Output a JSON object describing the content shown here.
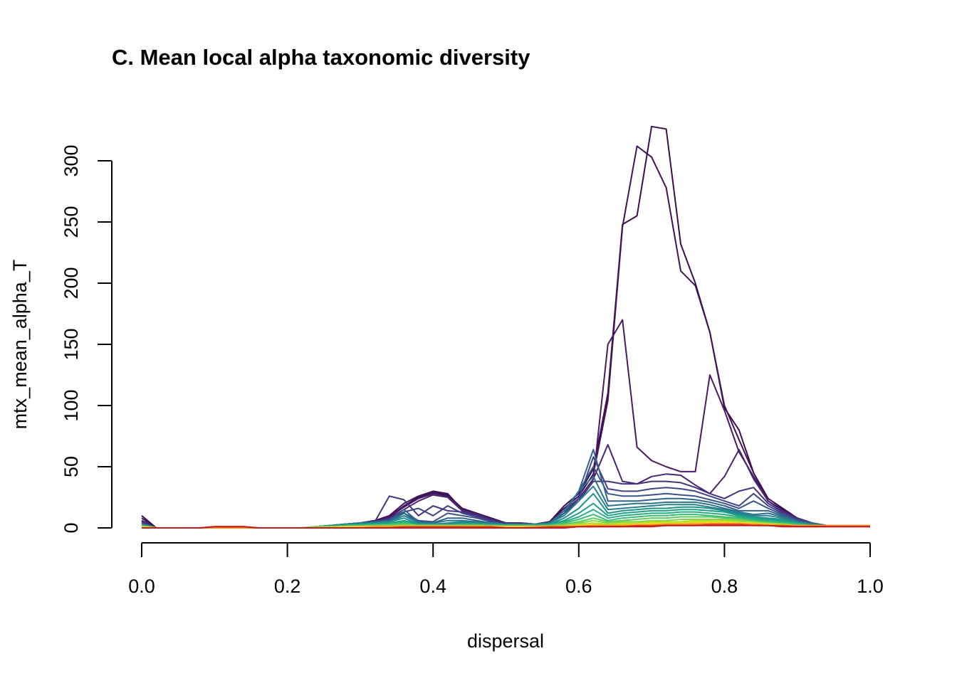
{
  "chart_data": {
    "type": "line",
    "title": "C. Mean local alpha taxonomic diversity",
    "xlabel": "dispersal",
    "ylabel": "mtx_mean_alpha_T",
    "xlim": [
      0,
      1
    ],
    "ylim": [
      0,
      300
    ],
    "xticks": [
      "0.0",
      "0.2",
      "0.4",
      "0.6",
      "0.8",
      "1.0"
    ],
    "yticks": [
      "0",
      "50",
      "100",
      "150",
      "200",
      "250",
      "300"
    ],
    "grid": false,
    "legend": "none",
    "x": [
      0.0,
      0.02,
      0.04,
      0.06,
      0.08,
      0.1,
      0.12,
      0.14,
      0.16,
      0.18,
      0.2,
      0.22,
      0.24,
      0.26,
      0.28,
      0.3,
      0.32,
      0.34,
      0.36,
      0.38,
      0.4,
      0.42,
      0.44,
      0.46,
      0.48,
      0.5,
      0.52,
      0.54,
      0.56,
      0.58,
      0.6,
      0.62,
      0.64,
      0.66,
      0.68,
      0.7,
      0.72,
      0.74,
      0.76,
      0.78,
      0.8,
      0.82,
      0.84,
      0.86,
      0.88,
      0.9,
      0.92,
      0.94,
      0.96,
      0.98,
      1.0
    ],
    "series": [
      {
        "color": "#3b0f4f",
        "values": [
          10,
          0,
          0,
          0,
          0,
          0,
          0,
          0,
          0,
          0,
          0,
          0,
          1,
          2,
          3,
          4,
          6,
          9,
          18,
          25,
          29,
          27,
          16,
          12,
          8,
          4,
          4,
          3,
          5,
          18,
          28,
          48,
          110,
          248,
          255,
          328,
          326,
          232,
          200,
          160,
          98,
          80,
          45,
          24,
          16,
          8,
          4,
          2,
          2,
          2,
          2
        ]
      },
      {
        "color": "#431259",
        "values": [
          8,
          0,
          0,
          0,
          0,
          0,
          0,
          0,
          0,
          0,
          0,
          0,
          1,
          2,
          3,
          4,
          6,
          10,
          20,
          26,
          30,
          28,
          15,
          12,
          7,
          4,
          4,
          3,
          5,
          16,
          26,
          44,
          104,
          246,
          312,
          303,
          278,
          210,
          198,
          160,
          100,
          72,
          45,
          22,
          15,
          8,
          4,
          2,
          2,
          2,
          2
        ]
      },
      {
        "color": "#471a63",
        "values": [
          6,
          0,
          0,
          0,
          0,
          0,
          0,
          0,
          0,
          0,
          0,
          0,
          1,
          2,
          3,
          4,
          6,
          9,
          17,
          24,
          28,
          26,
          15,
          11,
          7,
          4,
          4,
          3,
          5,
          14,
          24,
          40,
          150,
          170,
          66,
          55,
          50,
          46,
          46,
          125,
          96,
          62,
          42,
          22,
          14,
          8,
          4,
          2,
          2,
          2,
          2
        ]
      },
      {
        "color": "#482575",
        "values": [
          5,
          0,
          0,
          0,
          0,
          0,
          0,
          0,
          0,
          0,
          0,
          0,
          1,
          2,
          3,
          4,
          5,
          8,
          15,
          22,
          27,
          25,
          14,
          11,
          7,
          4,
          4,
          3,
          4,
          12,
          24,
          40,
          68,
          38,
          36,
          42,
          44,
          43,
          35,
          28,
          42,
          64,
          40,
          22,
          14,
          8,
          4,
          2,
          2,
          2,
          2
        ]
      },
      {
        "color": "#46337e",
        "values": [
          5,
          0,
          0,
          0,
          0,
          0,
          0,
          0,
          0,
          0,
          0,
          0,
          1,
          2,
          3,
          4,
          5,
          26,
          23,
          10,
          18,
          14,
          13,
          10,
          6,
          3,
          3,
          3,
          4,
          12,
          22,
          38,
          38,
          36,
          36,
          38,
          38,
          37,
          33,
          28,
          24,
          30,
          33,
          20,
          13,
          7,
          4,
          2,
          2,
          2,
          2
        ]
      },
      {
        "color": "#414487",
        "values": [
          4,
          0,
          0,
          0,
          0,
          0,
          0,
          0,
          0,
          0,
          0,
          0,
          1,
          2,
          3,
          4,
          5,
          7,
          13,
          16,
          10,
          18,
          12,
          9,
          5,
          3,
          3,
          3,
          4,
          12,
          24,
          58,
          32,
          30,
          30,
          32,
          33,
          32,
          30,
          26,
          22,
          18,
          28,
          18,
          12,
          7,
          4,
          2,
          2,
          2,
          2
        ]
      },
      {
        "color": "#3b528b",
        "values": [
          4,
          0,
          0,
          0,
          0,
          0,
          0,
          0,
          0,
          0,
          0,
          0,
          1,
          2,
          3,
          4,
          5,
          6,
          12,
          6,
          5,
          12,
          10,
          8,
          5,
          3,
          3,
          3,
          4,
          12,
          30,
          50,
          28,
          26,
          26,
          27,
          28,
          27,
          26,
          23,
          20,
          16,
          22,
          16,
          11,
          6,
          4,
          2,
          2,
          2,
          2
        ]
      },
      {
        "color": "#33638d",
        "values": [
          3,
          0,
          0,
          0,
          0,
          0,
          0,
          0,
          0,
          0,
          0,
          0,
          1,
          2,
          3,
          4,
          5,
          6,
          15,
          5,
          4,
          8,
          8,
          6,
          4,
          3,
          3,
          3,
          4,
          12,
          30,
          64,
          22,
          22,
          22,
          23,
          24,
          24,
          23,
          21,
          18,
          14,
          14,
          14,
          10,
          6,
          3,
          2,
          2,
          2,
          2
        ]
      },
      {
        "color": "#2c728e",
        "values": [
          3,
          0,
          0,
          0,
          0,
          0,
          0,
          0,
          0,
          0,
          0,
          0,
          1,
          2,
          3,
          4,
          4,
          5,
          12,
          4,
          4,
          6,
          6,
          5,
          4,
          3,
          3,
          3,
          4,
          14,
          30,
          42,
          18,
          19,
          20,
          20,
          21,
          21,
          21,
          19,
          16,
          13,
          11,
          12,
          9,
          5,
          3,
          2,
          2,
          2,
          2
        ]
      },
      {
        "color": "#26828e",
        "values": [
          3,
          0,
          0,
          0,
          0,
          0,
          0,
          0,
          0,
          0,
          0,
          0,
          1,
          2,
          3,
          3,
          4,
          5,
          10,
          4,
          3,
          4,
          5,
          4,
          3,
          3,
          3,
          3,
          4,
          10,
          22,
          34,
          15,
          16,
          17,
          18,
          19,
          19,
          19,
          17,
          15,
          12,
          10,
          10,
          8,
          5,
          3,
          2,
          2,
          2,
          2
        ]
      },
      {
        "color": "#21918c",
        "values": [
          2,
          0,
          0,
          0,
          0,
          0,
          0,
          0,
          0,
          0,
          0,
          0,
          1,
          2,
          2,
          3,
          4,
          5,
          8,
          3,
          3,
          3,
          4,
          4,
          3,
          2,
          2,
          2,
          3,
          8,
          16,
          28,
          12,
          14,
          15,
          16,
          16,
          17,
          17,
          16,
          14,
          11,
          9,
          8,
          7,
          4,
          3,
          2,
          2,
          2,
          2
        ]
      },
      {
        "color": "#1fa088",
        "values": [
          2,
          0,
          0,
          0,
          0,
          0,
          0,
          0,
          0,
          0,
          0,
          0,
          1,
          1,
          2,
          3,
          3,
          4,
          6,
          3,
          3,
          3,
          3,
          3,
          3,
          2,
          2,
          2,
          3,
          6,
          12,
          20,
          10,
          12,
          13,
          14,
          14,
          15,
          15,
          14,
          13,
          10,
          8,
          7,
          6,
          4,
          2,
          2,
          2,
          2,
          2
        ]
      },
      {
        "color": "#28ae80",
        "values": [
          2,
          0,
          0,
          0,
          0,
          0,
          0,
          0,
          0,
          0,
          0,
          0,
          1,
          1,
          2,
          2,
          3,
          3,
          5,
          2,
          2,
          2,
          3,
          3,
          2,
          2,
          2,
          2,
          2,
          5,
          9,
          15,
          8,
          10,
          11,
          12,
          12,
          13,
          13,
          12,
          11,
          9,
          7,
          6,
          5,
          3,
          2,
          2,
          2,
          2,
          2
        ]
      },
      {
        "color": "#3fbc73",
        "values": [
          2,
          0,
          0,
          0,
          0,
          0,
          0,
          0,
          0,
          0,
          0,
          0,
          1,
          1,
          2,
          2,
          2,
          3,
          4,
          2,
          2,
          2,
          2,
          2,
          2,
          2,
          2,
          2,
          2,
          4,
          7,
          11,
          6,
          8,
          9,
          10,
          10,
          11,
          11,
          10,
          9,
          8,
          6,
          5,
          4,
          3,
          2,
          2,
          2,
          2,
          2
        ]
      },
      {
        "color": "#5ec962",
        "values": [
          1,
          0,
          0,
          0,
          0,
          0,
          0,
          0,
          0,
          0,
          0,
          0,
          1,
          1,
          1,
          2,
          2,
          2,
          3,
          2,
          2,
          2,
          2,
          2,
          2,
          2,
          2,
          2,
          2,
          3,
          5,
          8,
          5,
          6,
          7,
          8,
          8,
          9,
          9,
          9,
          8,
          7,
          5,
          4,
          3,
          2,
          2,
          2,
          2,
          2,
          2
        ]
      },
      {
        "color": "#84d44b",
        "values": [
          1,
          0,
          0,
          0,
          0,
          0,
          0,
          0,
          0,
          0,
          0,
          0,
          1,
          1,
          1,
          1,
          2,
          2,
          2,
          2,
          2,
          2,
          2,
          2,
          2,
          1,
          1,
          1,
          2,
          2,
          4,
          6,
          4,
          5,
          5,
          6,
          6,
          7,
          7,
          7,
          7,
          6,
          5,
          4,
          3,
          2,
          2,
          2,
          2,
          2,
          2
        ]
      },
      {
        "color": "#addc30",
        "values": [
          1,
          0,
          0,
          0,
          0,
          0,
          0,
          0,
          0,
          0,
          0,
          0,
          0,
          1,
          1,
          1,
          1,
          1,
          2,
          2,
          2,
          2,
          2,
          2,
          1,
          1,
          1,
          1,
          1,
          2,
          3,
          4,
          3,
          4,
          4,
          5,
          5,
          5,
          6,
          6,
          6,
          5,
          4,
          3,
          3,
          2,
          2,
          2,
          2,
          2,
          2
        ]
      },
      {
        "color": "#d8e219",
        "values": [
          1,
          0,
          0,
          0,
          0,
          0,
          0,
          0,
          0,
          0,
          0,
          0,
          0,
          0,
          1,
          1,
          1,
          1,
          1,
          1,
          1,
          1,
          1,
          1,
          1,
          1,
          1,
          1,
          1,
          1,
          2,
          3,
          2,
          3,
          3,
          4,
          4,
          4,
          5,
          5,
          5,
          4,
          4,
          3,
          2,
          2,
          2,
          2,
          2,
          2,
          2
        ]
      },
      {
        "color": "#fdc527",
        "values": [
          0,
          0,
          0,
          0,
          0,
          0,
          0,
          0,
          0,
          0,
          0,
          0,
          0,
          0,
          0,
          1,
          1,
          1,
          1,
          1,
          1,
          1,
          1,
          1,
          1,
          1,
          1,
          1,
          1,
          1,
          2,
          2,
          2,
          2,
          3,
          3,
          3,
          3,
          4,
          4,
          4,
          4,
          3,
          3,
          2,
          2,
          2,
          2,
          2,
          2,
          2
        ]
      },
      {
        "color": "#f68d1f",
        "values": [
          0,
          0,
          0,
          0,
          0,
          0,
          0,
          0,
          0,
          0,
          0,
          0,
          0,
          0,
          0,
          0,
          1,
          1,
          1,
          1,
          1,
          1,
          1,
          1,
          1,
          0,
          0,
          1,
          1,
          1,
          1,
          2,
          2,
          2,
          2,
          2,
          3,
          3,
          3,
          3,
          3,
          3,
          3,
          2,
          2,
          2,
          2,
          2,
          2,
          2,
          2
        ]
      },
      {
        "color": "#e0461e",
        "values": [
          0,
          0,
          0,
          0,
          0,
          1,
          1,
          1,
          0,
          0,
          0,
          0,
          0,
          0,
          0,
          0,
          0,
          0,
          1,
          1,
          1,
          1,
          1,
          1,
          1,
          0,
          0,
          0,
          1,
          1,
          1,
          1,
          1,
          1,
          2,
          2,
          2,
          2,
          2,
          3,
          3,
          3,
          2,
          2,
          2,
          1,
          1,
          1,
          1,
          1,
          1
        ]
      },
      {
        "color": "#c21b1b",
        "values": [
          0,
          0,
          0,
          0,
          0,
          1,
          1,
          1,
          0,
          0,
          0,
          0,
          0,
          0,
          0,
          0,
          0,
          0,
          0,
          0,
          0,
          0,
          0,
          0,
          0,
          0,
          0,
          0,
          0,
          0,
          1,
          1,
          1,
          1,
          1,
          1,
          2,
          2,
          2,
          2,
          2,
          2,
          2,
          2,
          1,
          1,
          1,
          1,
          1,
          1,
          1
        ]
      }
    ]
  }
}
